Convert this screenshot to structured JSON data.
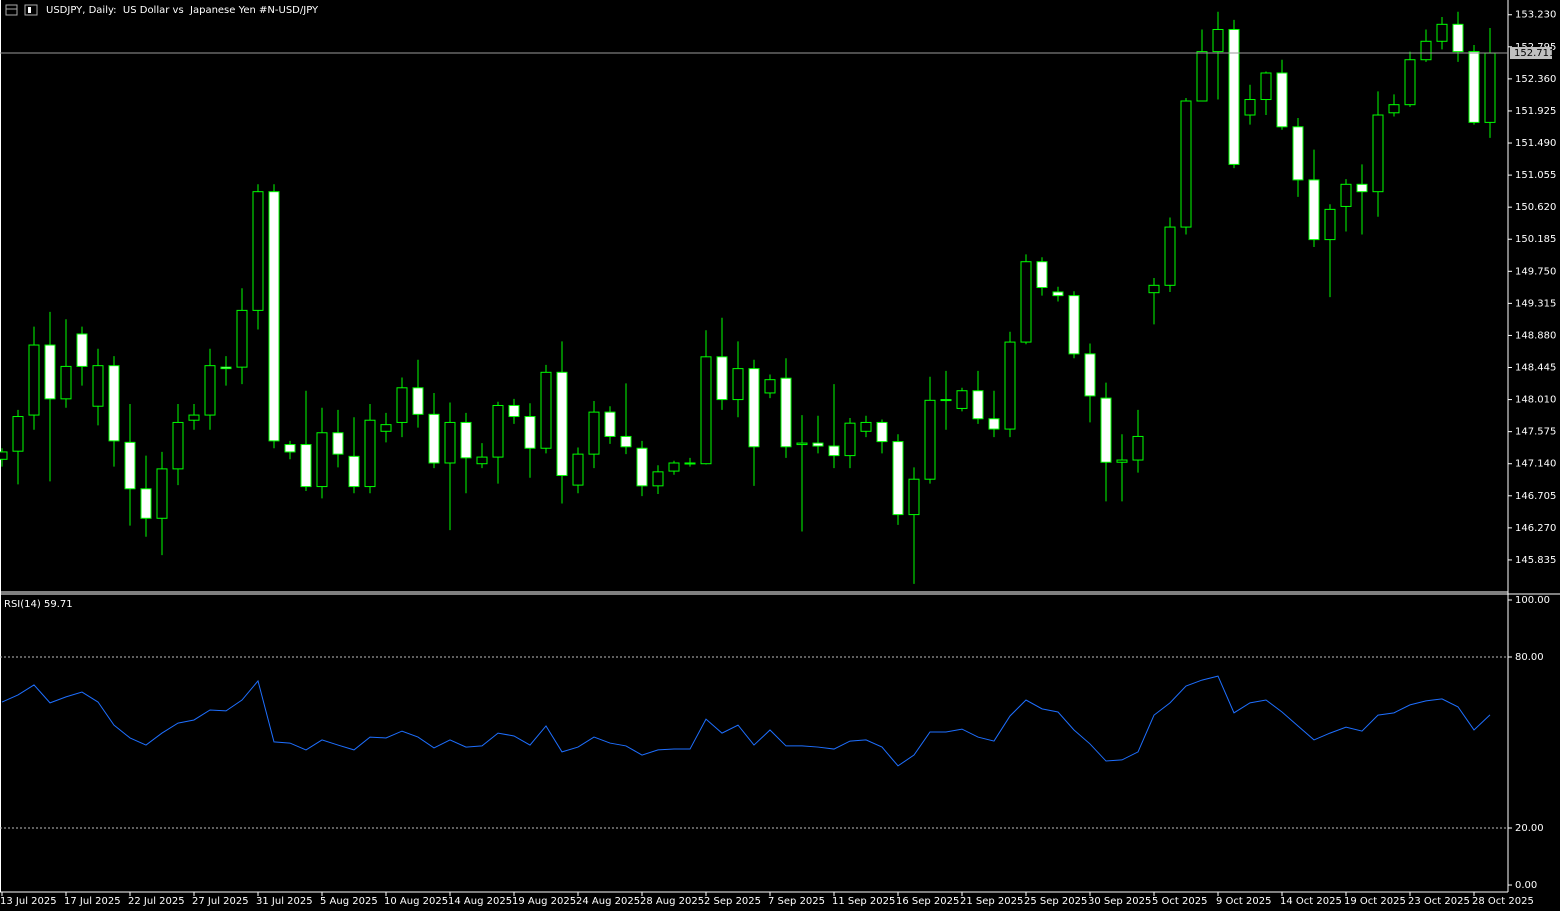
{
  "chart_data": [
    {
      "type": "candlestick",
      "title": "USDJPY, Daily:  US Dollar vs  Japanese Yen #N-USD/JPY",
      "x": [
        "13 Jul 2025",
        null,
        null,
        null,
        "17 Jul 2025",
        null,
        null,
        null,
        "22 Jul 2025",
        null,
        null,
        null,
        "27 Jul 2025",
        null,
        null,
        null,
        "31 Jul 2025",
        null,
        null,
        null,
        "5 Aug 2025",
        null,
        null,
        null,
        "10 Aug 2025",
        null,
        null,
        null,
        "14 Aug 2025",
        null,
        null,
        null,
        "19 Aug 2025",
        null,
        null,
        null,
        "24 Aug 2025",
        null,
        null,
        null,
        "28 Aug 2025",
        null,
        null,
        null,
        "2 Sep 2025",
        null,
        null,
        null,
        "7 Sep 2025",
        null,
        null,
        null,
        "11 Sep 2025",
        null,
        null,
        null,
        "16 Sep 2025",
        null,
        null,
        null,
        "21 Sep 2025",
        null,
        null,
        null,
        "25 Sep 2025",
        null,
        null,
        null,
        "30 Sep 2025",
        null,
        null,
        null,
        "5 Oct 2025",
        null,
        null,
        null,
        "9 Oct 2025",
        null,
        null,
        null,
        "14 Oct 2025",
        null,
        null,
        null,
        "19 Oct 2025",
        null,
        null,
        null,
        "23 Oct 2025",
        null,
        null,
        null,
        "28 Oct 2025",
        null
      ],
      "open": [
        147.2,
        147.31,
        147.8,
        148.75,
        148.02,
        148.9,
        147.92,
        148.47,
        147.43,
        146.8,
        146.4,
        147.07,
        147.73,
        147.8,
        148.45,
        148.45,
        149.22,
        150.83,
        147.4,
        147.4,
        146.83,
        147.56,
        147.24,
        146.83,
        147.58,
        147.7,
        148.17,
        147.81,
        147.15,
        147.7,
        147.14,
        147.23,
        147.93,
        147.78,
        147.35,
        148.38,
        146.85,
        147.27,
        147.84,
        147.51,
        147.35,
        146.84,
        147.04,
        147.15,
        147.14,
        148.59,
        148.01,
        148.43,
        148.1,
        148.3,
        147.4,
        147.42,
        147.38,
        147.25,
        147.58,
        147.7,
        147.44,
        146.45,
        146.93,
        148.0,
        147.89,
        148.13,
        147.75,
        147.61,
        148.79,
        149.88,
        149.47,
        149.42,
        148.63,
        148.03,
        147.16,
        147.19,
        149.46,
        149.56,
        150.35,
        152.06,
        152.73,
        153.03,
        151.87,
        152.08,
        152.44,
        151.71,
        150.99,
        150.18,
        150.63,
        150.93,
        150.83,
        151.9,
        152.01,
        152.62,
        152.87,
        153.1,
        152.73,
        151.77
      ],
      "high": [
        147.35,
        147.87,
        149.0,
        149.2,
        149.1,
        149.0,
        148.7,
        148.6,
        147.95,
        147.25,
        147.3,
        147.95,
        147.95,
        148.7,
        148.6,
        149.52,
        150.93,
        150.93,
        147.45,
        148.13,
        147.9,
        147.87,
        147.77,
        147.95,
        147.83,
        148.31,
        148.55,
        148.1,
        147.97,
        147.83,
        147.42,
        147.98,
        148.02,
        147.96,
        148.48,
        148.8,
        147.36,
        147.99,
        147.92,
        148.23,
        147.45,
        147.12,
        147.18,
        147.22,
        148.95,
        149.12,
        148.8,
        148.55,
        148.35,
        148.57,
        147.8,
        147.79,
        148.22,
        147.76,
        147.79,
        147.74,
        147.54,
        147.09,
        148.32,
        148.4,
        148.17,
        148.4,
        148.13,
        148.93,
        149.98,
        149.94,
        149.54,
        149.48,
        148.77,
        148.24,
        147.54,
        147.87,
        149.66,
        150.48,
        152.1,
        153.03,
        153.27,
        153.16,
        152.28,
        152.46,
        152.62,
        151.83,
        151.4,
        150.66,
        151.0,
        151.2,
        152.19,
        152.15,
        152.73,
        153.03,
        153.2,
        153.27,
        152.82,
        153.05
      ],
      "low": [
        147.1,
        146.86,
        147.6,
        146.9,
        147.9,
        148.2,
        147.66,
        147.1,
        146.3,
        146.15,
        145.9,
        146.85,
        147.6,
        147.6,
        148.2,
        148.22,
        148.96,
        147.35,
        147.2,
        146.77,
        146.67,
        147.09,
        146.74,
        146.74,
        147.43,
        147.5,
        147.63,
        147.08,
        146.24,
        146.74,
        147.08,
        146.87,
        147.68,
        146.95,
        147.28,
        146.6,
        146.74,
        147.08,
        147.41,
        147.27,
        146.7,
        146.73,
        146.99,
        147.1,
        147.13,
        147.87,
        147.77,
        146.84,
        148.03,
        147.22,
        146.22,
        147.28,
        147.08,
        147.08,
        147.5,
        147.28,
        146.31,
        145.51,
        146.87,
        147.6,
        147.85,
        147.68,
        147.5,
        147.5,
        148.76,
        149.42,
        149.34,
        148.57,
        147.7,
        146.63,
        146.63,
        147.02,
        149.03,
        149.47,
        150.25,
        152.06,
        152.08,
        151.15,
        151.74,
        151.87,
        151.67,
        150.76,
        150.08,
        149.4,
        150.29,
        150.25,
        150.49,
        151.85,
        151.98,
        152.59,
        152.76,
        152.59,
        151.74,
        151.56
      ],
      "close": [
        147.3,
        147.78,
        148.75,
        148.02,
        148.46,
        148.46,
        148.47,
        147.45,
        146.8,
        146.4,
        147.07,
        147.7,
        147.8,
        148.47,
        148.43,
        149.22,
        150.83,
        147.45,
        147.3,
        146.83,
        147.56,
        147.27,
        146.83,
        147.73,
        147.67,
        148.17,
        147.81,
        147.15,
        147.7,
        147.22,
        147.23,
        147.93,
        147.78,
        147.35,
        148.38,
        146.98,
        147.27,
        147.84,
        147.51,
        147.37,
        146.84,
        147.03,
        147.15,
        147.14,
        148.59,
        148.01,
        148.43,
        147.37,
        148.28,
        147.37,
        147.42,
        147.38,
        147.25,
        147.69,
        147.7,
        147.44,
        146.45,
        146.93,
        148.0,
        148.01,
        148.13,
        147.75,
        147.61,
        148.79,
        149.88,
        149.53,
        149.42,
        148.63,
        148.06,
        147.16,
        147.19,
        147.51,
        149.56,
        150.35,
        152.06,
        152.73,
        153.03,
        151.2,
        152.08,
        152.44,
        151.71,
        150.99,
        150.18,
        150.59,
        150.93,
        150.83,
        151.87,
        152.01,
        152.62,
        152.87,
        153.1,
        152.73,
        151.77,
        152.71
      ],
      "up_color": "#000000",
      "down_color": "#ffffff",
      "wick_color": "#00ff00",
      "last_price": 152.711,
      "ylim": [
        145.4,
        153.43
      ],
      "yticks": [
        {
          "value": 153.23,
          "label": "153.230"
        },
        {
          "value": 152.795,
          "label": "152.795"
        },
        {
          "value": 152.36,
          "label": "152.360"
        },
        {
          "value": 151.925,
          "label": "151.925"
        },
        {
          "value": 151.49,
          "label": "151.490"
        },
        {
          "value": 151.055,
          "label": "151.055"
        },
        {
          "value": 150.62,
          "label": "150.620"
        },
        {
          "value": 150.185,
          "label": "150.185"
        },
        {
          "value": 149.75,
          "label": "149.750"
        },
        {
          "value": 149.315,
          "label": "149.315"
        },
        {
          "value": 148.88,
          "label": "148.880"
        },
        {
          "value": 148.445,
          "label": "148.445"
        },
        {
          "value": 148.01,
          "label": "148.010"
        },
        {
          "value": 147.575,
          "label": "147.575"
        },
        {
          "value": 147.14,
          "label": "147.140"
        },
        {
          "value": 146.705,
          "label": "146.705"
        },
        {
          "value": 146.27,
          "label": "146.270"
        },
        {
          "value": 145.835,
          "label": "145.835"
        }
      ]
    },
    {
      "type": "line",
      "title": "RSI(14)",
      "series": [
        {
          "name": "RSI(14)",
          "color": "#1e6fff",
          "values": [
            64.2,
            66.7,
            70.2,
            63.9,
            66.0,
            67.7,
            64.2,
            56.1,
            51.6,
            49.1,
            53.3,
            56.8,
            57.9,
            61.4,
            61.1,
            64.9,
            71.6,
            50.2,
            49.8,
            47.4,
            50.9,
            49.1,
            47.4,
            51.9,
            51.6,
            54.0,
            51.9,
            48.1,
            50.9,
            48.4,
            48.8,
            53.3,
            52.3,
            49.1,
            55.8,
            46.7,
            48.4,
            51.9,
            49.8,
            48.8,
            45.6,
            47.4,
            47.7,
            47.7,
            58.2,
            53.3,
            56.1,
            49.1,
            54.4,
            48.8,
            48.8,
            48.4,
            47.7,
            50.5,
            50.9,
            48.4,
            41.8,
            45.6,
            53.7,
            53.7,
            54.7,
            51.9,
            50.5,
            59.3,
            64.9,
            61.8,
            60.7,
            54.4,
            49.5,
            43.5,
            43.9,
            46.7,
            59.6,
            63.9,
            69.8,
            71.9,
            73.3,
            60.4,
            63.9,
            64.9,
            60.7,
            55.8,
            50.9,
            53.3,
            55.4,
            54.0,
            59.6,
            60.4,
            63.2,
            64.6,
            65.3,
            62.5,
            54.4,
            59.71
          ]
        }
      ],
      "levels": [
        80,
        20
      ],
      "ylim": [
        -2.8,
        102.1
      ],
      "yticks": [
        {
          "value": 100,
          "label": "100.00"
        },
        {
          "value": 80,
          "label": "80.00"
        },
        {
          "value": 20,
          "label": "20.00"
        },
        {
          "value": 0,
          "label": "0.00"
        }
      ]
    }
  ]
}
